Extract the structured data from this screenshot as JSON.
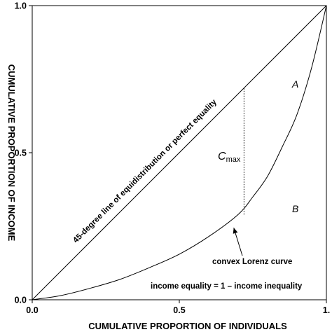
{
  "chart_data": {
    "type": "line",
    "title": "",
    "xlabel": "CUMULATIVE PROPORTION OF INDIVIDUALS",
    "ylabel": "CUMULATIVE PROPORTION OF INCOME",
    "xlim": [
      0,
      1
    ],
    "ylim": [
      0,
      1
    ],
    "x_ticks": [
      "0.0",
      "0.5",
      "1."
    ],
    "y_ticks": [
      "0.0",
      "0.5",
      "1.0"
    ],
    "grid": false,
    "series": [
      {
        "name": "45-degree line of equidistribution or perfect equality",
        "x": [
          0,
          1
        ],
        "y": [
          0,
          1
        ]
      },
      {
        "name": "convex Lorenz curve",
        "x": [
          0,
          0.1,
          0.2,
          0.3,
          0.4,
          0.5,
          0.6,
          0.7,
          0.75,
          0.8,
          0.85,
          0.9,
          0.95,
          1.0
        ],
        "y": [
          0,
          0.015,
          0.04,
          0.07,
          0.11,
          0.155,
          0.215,
          0.29,
          0.35,
          0.42,
          0.52,
          0.63,
          0.79,
          1.0
        ]
      }
    ],
    "cmax_line": {
      "x": 0.72,
      "y_low": 0.29,
      "y_high": 0.72
    },
    "annotations": {
      "region_a": "A",
      "region_b": "B",
      "cmax": "C",
      "cmax_sub": "max",
      "equality_line_label": "45-degree line of equidistribution or perfect equality",
      "lorenz_label": "convex Lorenz curve",
      "identity": "income equality = 1 – income inequality"
    }
  }
}
